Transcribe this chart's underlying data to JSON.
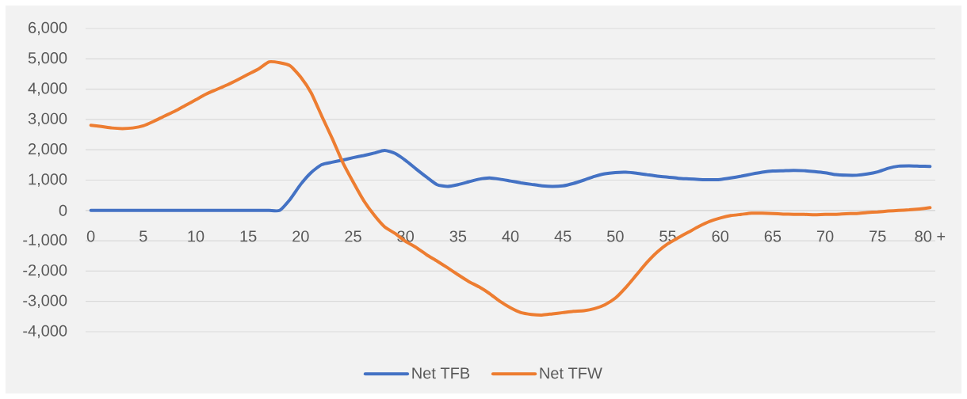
{
  "chart_data": {
    "type": "line",
    "categories": [
      "0",
      null,
      null,
      null,
      null,
      "5",
      null,
      null,
      null,
      null,
      "10",
      null,
      null,
      null,
      null,
      "15",
      null,
      null,
      null,
      null,
      "20",
      null,
      null,
      null,
      null,
      "25",
      null,
      null,
      null,
      null,
      "30",
      null,
      null,
      null,
      null,
      "35",
      null,
      null,
      null,
      null,
      "40",
      null,
      null,
      null,
      null,
      "45",
      null,
      null,
      null,
      null,
      "50",
      null,
      null,
      null,
      null,
      "55",
      null,
      null,
      null,
      null,
      "60",
      null,
      null,
      null,
      null,
      "65",
      null,
      null,
      null,
      null,
      "70",
      null,
      null,
      null,
      null,
      "75",
      null,
      null,
      null,
      null,
      "80 +"
    ],
    "series": [
      {
        "name": "Net TFB",
        "color": "#4472c4",
        "values": [
          0,
          0,
          0,
          0,
          0,
          0,
          0,
          0,
          0,
          0,
          0,
          0,
          0,
          0,
          0,
          0,
          0,
          0,
          0,
          370,
          860,
          1250,
          1510,
          1590,
          1660,
          1740,
          1810,
          1890,
          1980,
          1880,
          1650,
          1370,
          1100,
          850,
          790,
          850,
          940,
          1030,
          1070,
          1030,
          970,
          910,
          860,
          810,
          790,
          810,
          890,
          1000,
          1120,
          1210,
          1250,
          1260,
          1230,
          1180,
          1130,
          1100,
          1060,
          1040,
          1020,
          1010,
          1020,
          1070,
          1130,
          1200,
          1260,
          1300,
          1310,
          1320,
          1310,
          1280,
          1240,
          1180,
          1160,
          1160,
          1200,
          1270,
          1390,
          1460,
          1470,
          1460,
          1450
        ]
      },
      {
        "name": "Net TFW",
        "color": "#ed7d31",
        "values": [
          2810,
          2770,
          2720,
          2700,
          2720,
          2790,
          2940,
          3110,
          3270,
          3460,
          3650,
          3840,
          3990,
          4140,
          4310,
          4490,
          4670,
          4900,
          4870,
          4770,
          4400,
          3880,
          3120,
          2380,
          1590,
          940,
          330,
          -150,
          -540,
          -760,
          -1020,
          -1220,
          -1460,
          -1670,
          -1890,
          -2120,
          -2340,
          -2520,
          -2740,
          -3000,
          -3210,
          -3370,
          -3430,
          -3450,
          -3410,
          -3370,
          -3330,
          -3310,
          -3240,
          -3110,
          -2890,
          -2540,
          -2130,
          -1720,
          -1370,
          -1100,
          -900,
          -710,
          -520,
          -360,
          -250,
          -170,
          -130,
          -90,
          -90,
          -100,
          -120,
          -130,
          -130,
          -140,
          -130,
          -130,
          -110,
          -100,
          -70,
          -50,
          -20,
          0,
          20,
          50,
          90
        ]
      }
    ],
    "ylim": [
      -4000,
      6000
    ],
    "yticks": [
      {
        "value": -4000,
        "label": "-4,000"
      },
      {
        "value": -3000,
        "label": "-3,000"
      },
      {
        "value": -2000,
        "label": "-2,000"
      },
      {
        "value": -1000,
        "label": "-1,000"
      },
      0,
      {
        "value": 1000,
        "label": "1,000"
      },
      {
        "value": 2000,
        "label": "2,000"
      },
      {
        "value": 3000,
        "label": "3,000"
      },
      {
        "value": 4000,
        "label": "4,000"
      },
      {
        "value": 5000,
        "label": "5,000"
      },
      {
        "value": 6000,
        "label": "6,000"
      }
    ],
    "grid": "y",
    "legend": "bottom",
    "marker": "none",
    "line_style": "solid"
  }
}
